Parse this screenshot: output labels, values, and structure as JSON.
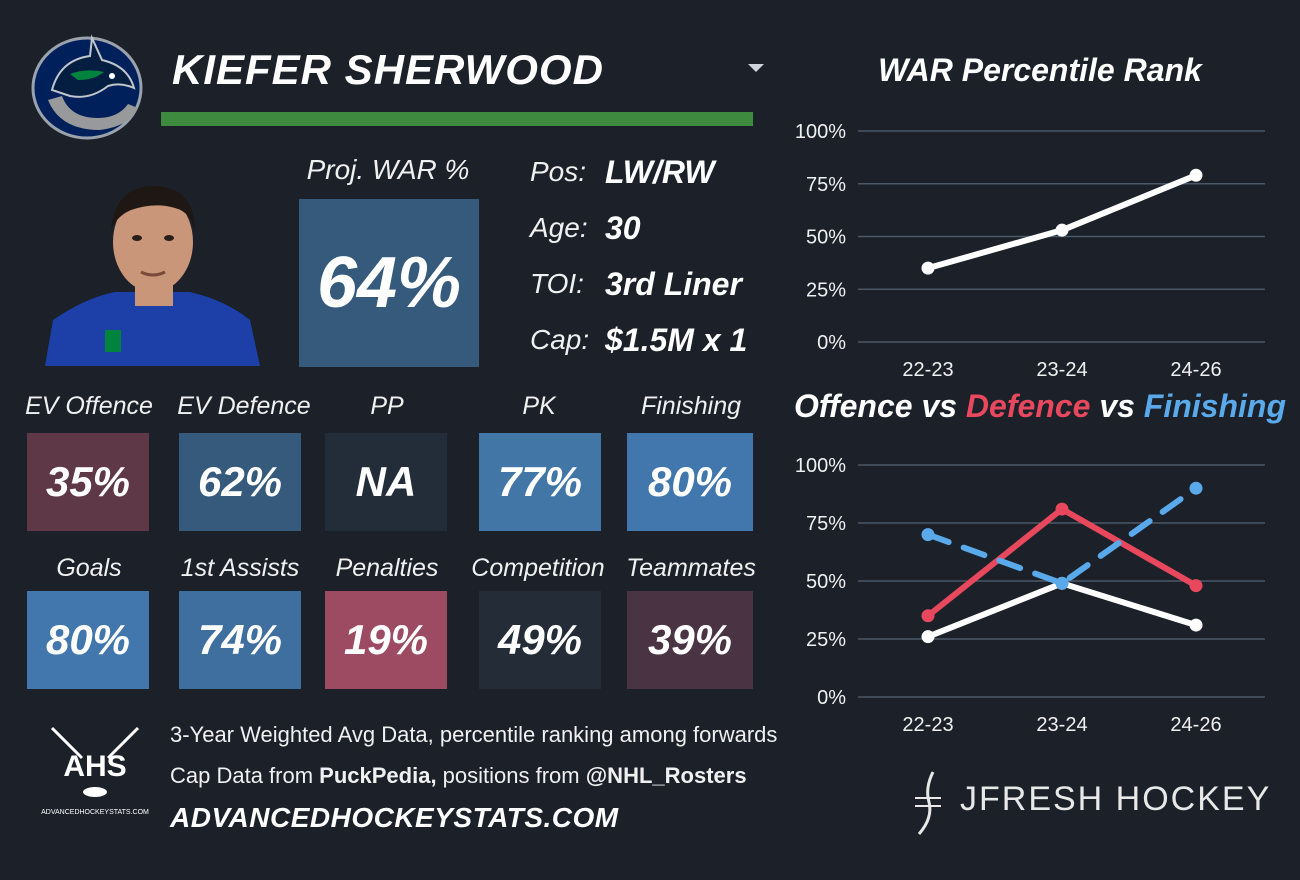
{
  "player": {
    "name": "KIEFER SHERWOOD",
    "proj_war_label": "Proj. WAR %",
    "proj_war_value": "64%",
    "info": [
      {
        "key": "Pos:",
        "value": "LW/RW"
      },
      {
        "key": "Age:",
        "value": "30"
      },
      {
        "key": "TOI:",
        "value": "3rd Liner"
      },
      {
        "key": "Cap:",
        "value": "$1.5M x 1"
      }
    ]
  },
  "tiles_row1": [
    {
      "label": "EV Offence",
      "value": "35%",
      "color": "#5e3846"
    },
    {
      "label": "EV Defence",
      "value": "62%",
      "color": "#365a7c"
    },
    {
      "label": "PP",
      "value": "NA",
      "color": "#232c39"
    },
    {
      "label": "PK",
      "value": "77%",
      "color": "#4176a6"
    },
    {
      "label": "Finishing",
      "value": "80%",
      "color": "#4277ad"
    }
  ],
  "tiles_row2": [
    {
      "label": "Goals",
      "value": "80%",
      "color": "#4277ad"
    },
    {
      "label": "1st Assists",
      "value": "74%",
      "color": "#3f6f9e"
    },
    {
      "label": "Penalties",
      "value": "19%",
      "color": "#9d4b63"
    },
    {
      "label": "Competition",
      "value": "49%",
      "color": "#242c38"
    },
    {
      "label": "Teammates",
      "value": "39%",
      "color": "#4a3443"
    }
  ],
  "footer": {
    "line1": "3-Year Weighted Avg Data, percentile ranking among forwards",
    "line2_prefix": "Cap Data from ",
    "line2_bold1": "PuckPedia,",
    "line2_mid": " positions from ",
    "line2_bold2": "@NHL_Rosters",
    "site": "ADVANCEDHOCKEYSTATS.COM",
    "ahs_logo_text": "AHS",
    "ahs_small_text": "ADVANCEDHOCKEYSTATS.COM",
    "brand": "JFRESH HOCKEY"
  },
  "chart_data": [
    {
      "type": "line",
      "title": "WAR Percentile Rank",
      "categories": [
        "22-23",
        "23-24",
        "24-26"
      ],
      "series": [
        {
          "values": [
            35,
            53,
            79
          ],
          "color": "#ffffff",
          "dashed": false
        }
      ],
      "yticks": [
        "0%",
        "25%",
        "50%",
        "75%",
        "100%"
      ],
      "ylim": [
        0,
        100
      ],
      "grid": true
    },
    {
      "type": "line",
      "title_parts": [
        {
          "text": "Offence",
          "color": "#ffffff"
        },
        {
          "text": " vs ",
          "color": "#ffffff"
        },
        {
          "text": "Defence",
          "color": "#e8485e"
        },
        {
          "text": " vs ",
          "color": "#ffffff"
        },
        {
          "text": "Finishing",
          "color": "#5aa9ea"
        }
      ],
      "categories": [
        "22-23",
        "23-24",
        "24-26"
      ],
      "series": [
        {
          "values": [
            26,
            49,
            31
          ],
          "color": "#ffffff",
          "dashed": false
        },
        {
          "values": [
            35,
            81,
            48
          ],
          "color": "#e8485e",
          "dashed": false
        },
        {
          "values": [
            70,
            49,
            90
          ],
          "color": "#5aa9ea",
          "dashed": true
        }
      ],
      "yticks": [
        "0%",
        "25%",
        "50%",
        "75%",
        "100%"
      ],
      "ylim": [
        0,
        100
      ],
      "grid": true
    }
  ]
}
